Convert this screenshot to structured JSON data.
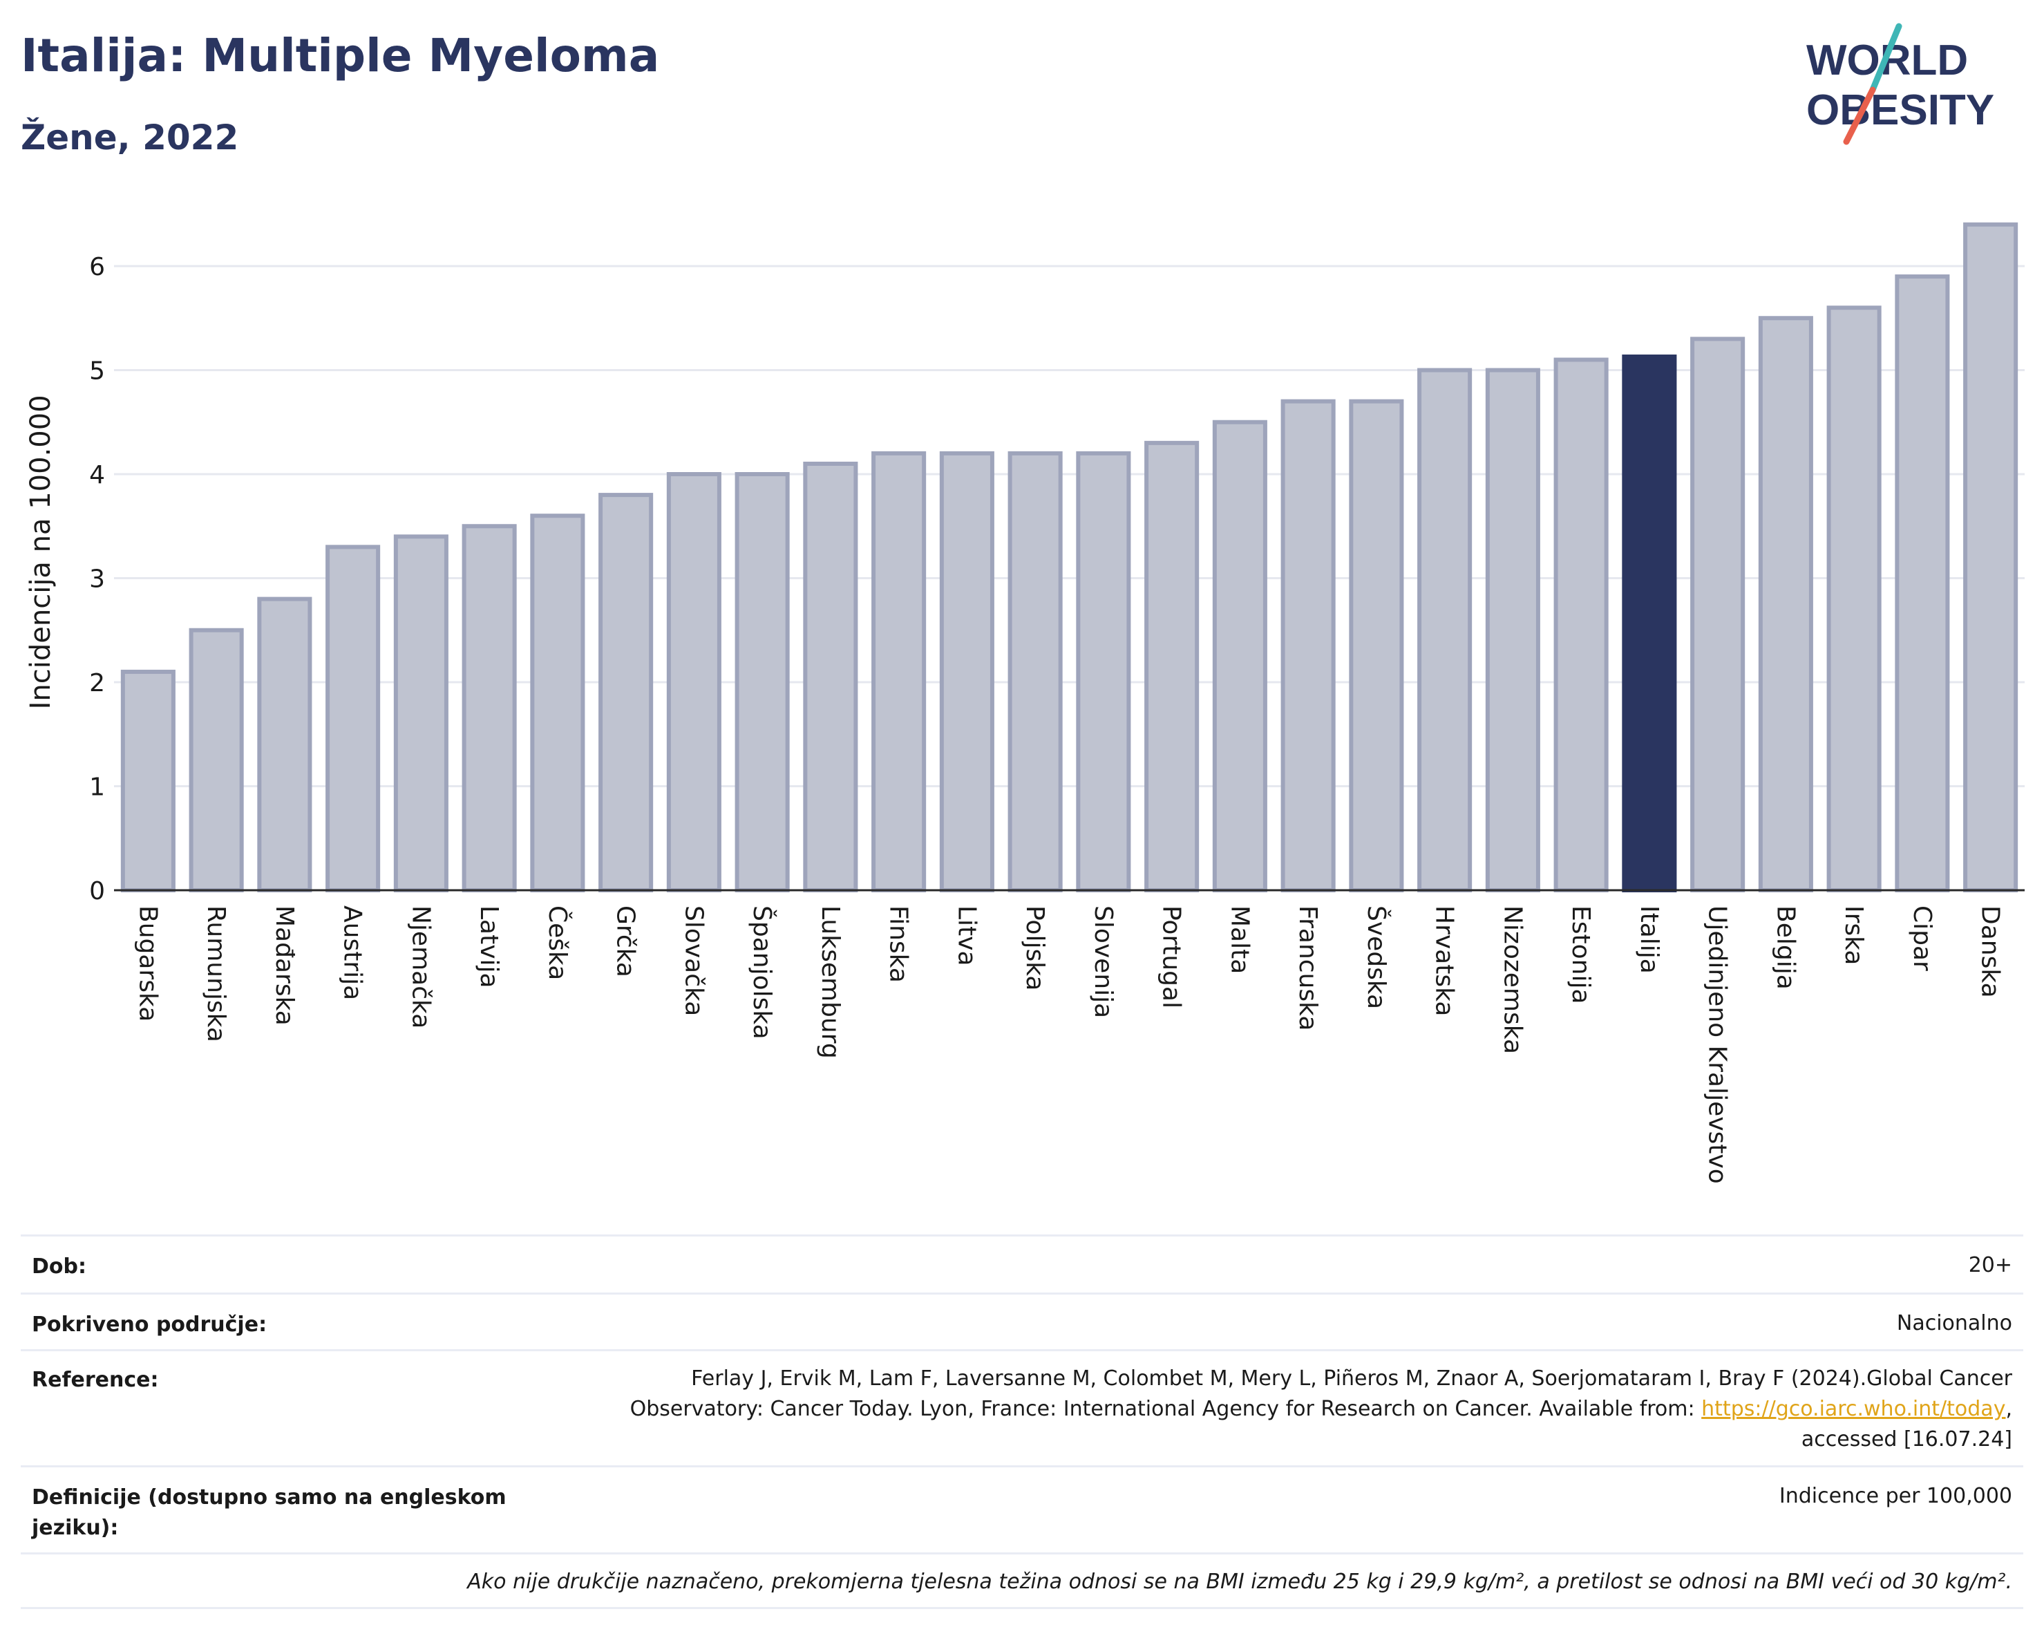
{
  "header": {
    "title": "Italija: Multiple Myeloma",
    "subtitle": "Žene, 2022"
  },
  "logo": {
    "line1": "WORLD",
    "line2": "OBESITY",
    "slash_colors": [
      "#3fb6b6",
      "#e8604c"
    ]
  },
  "chart_data": {
    "type": "bar",
    "ylabel": "Incidencija na 100.000",
    "ylim": [
      0,
      6.5
    ],
    "yticks": [
      0,
      1,
      2,
      3,
      4,
      5,
      6
    ],
    "grid": true,
    "highlight": "Italija",
    "colors": {
      "bar": "#bfc3d0",
      "bar_border": "#9ea4bb",
      "highlight": "#2a3560"
    },
    "categories": [
      "Bugarska",
      "Rumunjska",
      "Mađarska",
      "Austrija",
      "Njemačka",
      "Latvija",
      "Češka",
      "Grčka",
      "Slovačka",
      "Španjolska",
      "Luksemburg",
      "Finska",
      "Litva",
      "Poljska",
      "Slovenija",
      "Portugal",
      "Malta",
      "Francuska",
      "Švedska",
      "Hrvatska",
      "Nizozemska",
      "Estonija",
      "Italija",
      "Ujedinjeno Kraljevstvo",
      "Belgija",
      "Irska",
      "Cipar",
      "Danska"
    ],
    "values": [
      2.1,
      2.5,
      2.8,
      3.3,
      3.4,
      3.5,
      3.6,
      3.8,
      4.0,
      4.0,
      4.1,
      4.2,
      4.2,
      4.2,
      4.2,
      4.3,
      4.5,
      4.7,
      4.7,
      5.0,
      5.0,
      5.1,
      5.13,
      5.3,
      5.5,
      5.6,
      5.9,
      6.4
    ]
  },
  "info": {
    "age_label": "Dob:",
    "age_value": "20+",
    "coverage_label": "Pokriveno područje:",
    "coverage_value": "Nacionalno",
    "reference_label": "Reference:",
    "reference_line1": "Ferlay J, Ervik M, Lam F, Laversanne M, Colombet M, Mery L, Piñeros M, Znaor A, Soerjomataram I, Bray F (2024).Global Cancer",
    "reference_line2_prefix": "Observatory: Cancer Today. Lyon, France: International Agency for Research on Cancer. Available from: ",
    "reference_link": "https://gco.iarc.who.int/today",
    "reference_line2_suffix": ",",
    "reference_line3": "accessed [16.07.24]",
    "definitions_label_line1": "Definicije (dostupno samo na engleskom",
    "definitions_label_line2": "jeziku):",
    "definitions_value": "Indicence per 100,000",
    "footnote": "Ako nije drukčije naznačeno, prekomjerna tjelesna težina odnosi se na BMI između 25 kg i 29,9 kg/m², a pretilost se odnosi na BMI veći od 30 kg/m²."
  }
}
